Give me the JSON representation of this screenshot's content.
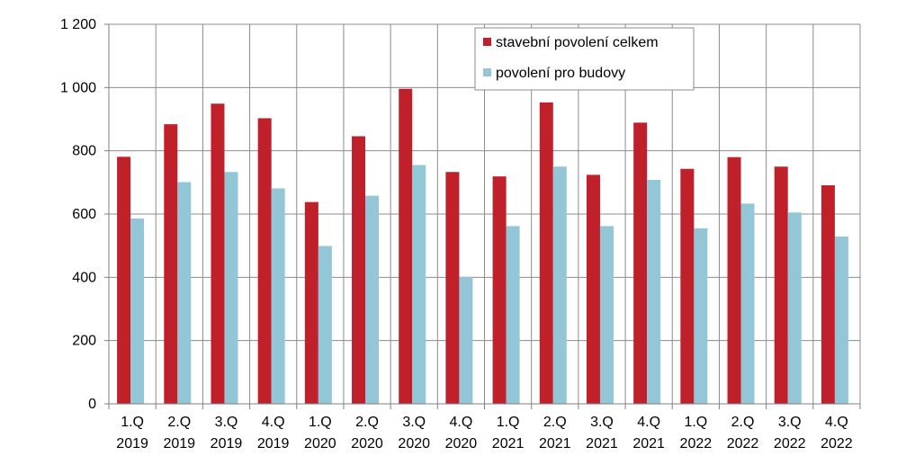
{
  "chart_data": {
    "type": "bar",
    "categories": [
      [
        "1.Q",
        "2019"
      ],
      [
        "2.Q",
        "2019"
      ],
      [
        "3.Q",
        "2019"
      ],
      [
        "4.Q",
        "2019"
      ],
      [
        "1.Q",
        "2020"
      ],
      [
        "2.Q",
        "2020"
      ],
      [
        "3.Q",
        "2020"
      ],
      [
        "4.Q",
        "2020"
      ],
      [
        "1.Q",
        "2021"
      ],
      [
        "2.Q",
        "2021"
      ],
      [
        "3.Q",
        "2021"
      ],
      [
        "4.Q",
        "2021"
      ],
      [
        "1.Q",
        "2022"
      ],
      [
        "2.Q",
        "2022"
      ],
      [
        "3.Q",
        "2022"
      ],
      [
        "4.Q",
        "2022"
      ]
    ],
    "series": [
      {
        "name": "stavební povolení celkem",
        "color": "#C0202A",
        "values": [
          781,
          884,
          949,
          903,
          638,
          846,
          996,
          733,
          719,
          953,
          724,
          889,
          743,
          780,
          750,
          691
        ]
      },
      {
        "name": "povolení pro budovy",
        "color": "#93C6D6",
        "values": [
          586,
          701,
          733,
          681,
          499,
          658,
          755,
          402,
          562,
          750,
          562,
          708,
          555,
          633,
          605,
          529
        ]
      }
    ],
    "ylim": [
      0,
      1200
    ],
    "yticks": [
      0,
      200,
      400,
      600,
      800,
      1000,
      1200
    ],
    "ytick_labels": [
      "0",
      "200",
      "400",
      "600",
      "800",
      "1 000",
      "1 200"
    ],
    "grid": true,
    "legend_position": "top-right"
  }
}
